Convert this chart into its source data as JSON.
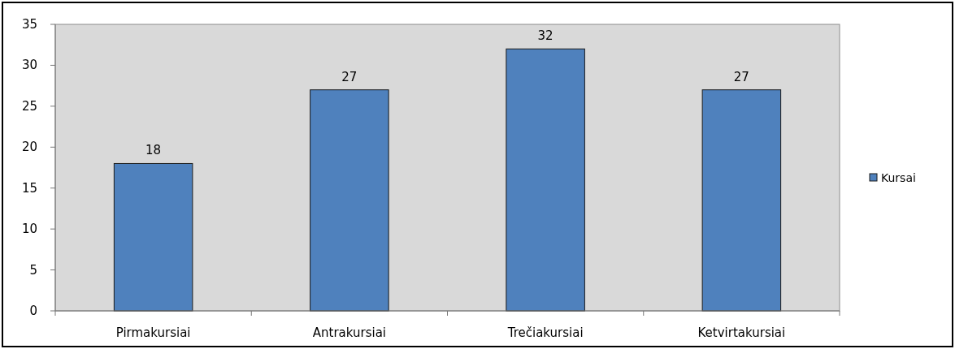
{
  "chart_data": {
    "type": "bar",
    "categories": [
      "Pirmakursiai",
      "Antrakursiai",
      "Trečiakursiai",
      "Ketvirtakursiai"
    ],
    "series": [
      {
        "name": "Kursai",
        "color": "#4f81bd",
        "values": [
          18,
          27,
          32,
          27
        ]
      }
    ],
    "ylim": [
      0,
      35
    ],
    "yticks": [
      0,
      5,
      10,
      15,
      20,
      25,
      30,
      35
    ],
    "data_labels": true,
    "legend": "right",
    "grid": false
  }
}
